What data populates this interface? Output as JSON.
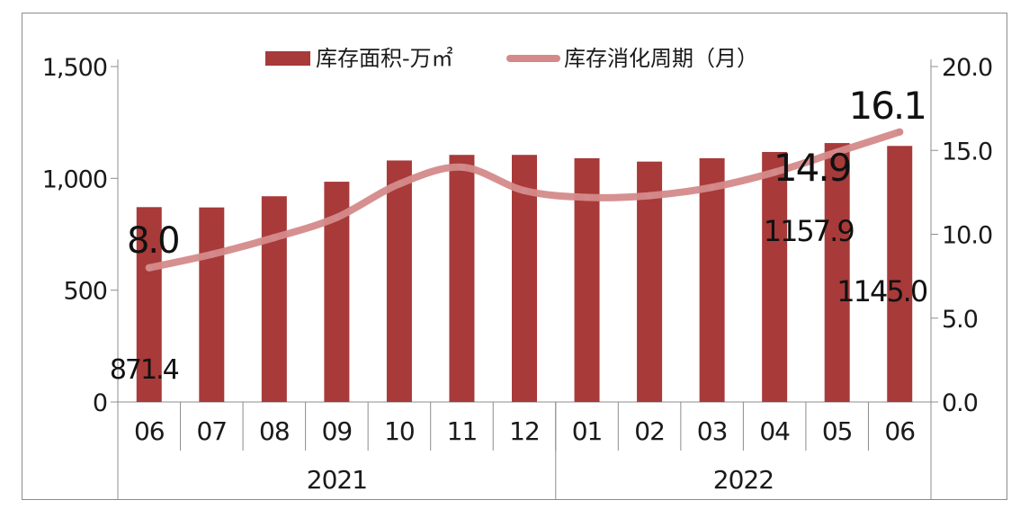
{
  "chart_data": {
    "type": "bar",
    "categories": [
      "06",
      "07",
      "08",
      "09",
      "10",
      "11",
      "12",
      "01",
      "02",
      "03",
      "04",
      "05",
      "06"
    ],
    "groups": [
      {
        "label": "2021",
        "start": 0,
        "end": 6
      },
      {
        "label": "2022",
        "start": 7,
        "end": 12
      }
    ],
    "series": [
      {
        "name": "库存面积-万㎡",
        "type": "bar",
        "axis": "left",
        "color": "#a83a3a",
        "values": [
          871.4,
          870,
          920,
          985,
          1080,
          1105,
          1105,
          1090,
          1075,
          1090,
          1118,
          1157.9,
          1145.0
        ]
      },
      {
        "name": "库存消化周期（月）",
        "type": "line",
        "axis": "right",
        "color": "#d48a8a",
        "values": [
          8.0,
          8.8,
          9.8,
          11.0,
          13.0,
          14.0,
          12.6,
          12.2,
          12.3,
          12.8,
          13.7,
          14.9,
          16.1
        ]
      }
    ],
    "y_left": {
      "min": 0,
      "max": 1500,
      "ticks": [
        "0",
        "500",
        "1,000",
        "1,500"
      ]
    },
    "y_right": {
      "min": 0,
      "max": 20,
      "ticks": [
        "0.0",
        "5.0",
        "10.0",
        "15.0",
        "20.0"
      ]
    },
    "data_labels": [
      {
        "text": "871.4",
        "series": 0,
        "index": 0
      },
      {
        "text": "8.0",
        "series": 1,
        "index": 0
      },
      {
        "text": "1157.9",
        "series": 0,
        "index": 11
      },
      {
        "text": "14.9",
        "series": 1,
        "index": 11
      },
      {
        "text": "1145.0",
        "series": 0,
        "index": 12
      },
      {
        "text": "16.1",
        "series": 1,
        "index": 12
      }
    ],
    "legend": "top-center",
    "grid": false
  }
}
